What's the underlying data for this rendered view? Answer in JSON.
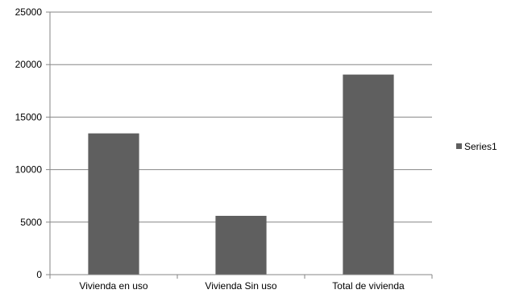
{
  "chart_data": {
    "type": "bar",
    "categories": [
      "Vivienda en uso",
      "Vivienda Sin uso",
      "Total de vivienda"
    ],
    "series": [
      {
        "name": "Series1",
        "values": [
          13450,
          5600,
          19050
        ],
        "color": "#5f5f5f"
      }
    ],
    "ylim": [
      0,
      25000
    ],
    "yticks": [
      0,
      5000,
      10000,
      15000,
      20000,
      25000
    ],
    "grid": true,
    "legend_position": "right",
    "axis_color": "#868686",
    "title": "",
    "xlabel": "",
    "ylabel": ""
  }
}
